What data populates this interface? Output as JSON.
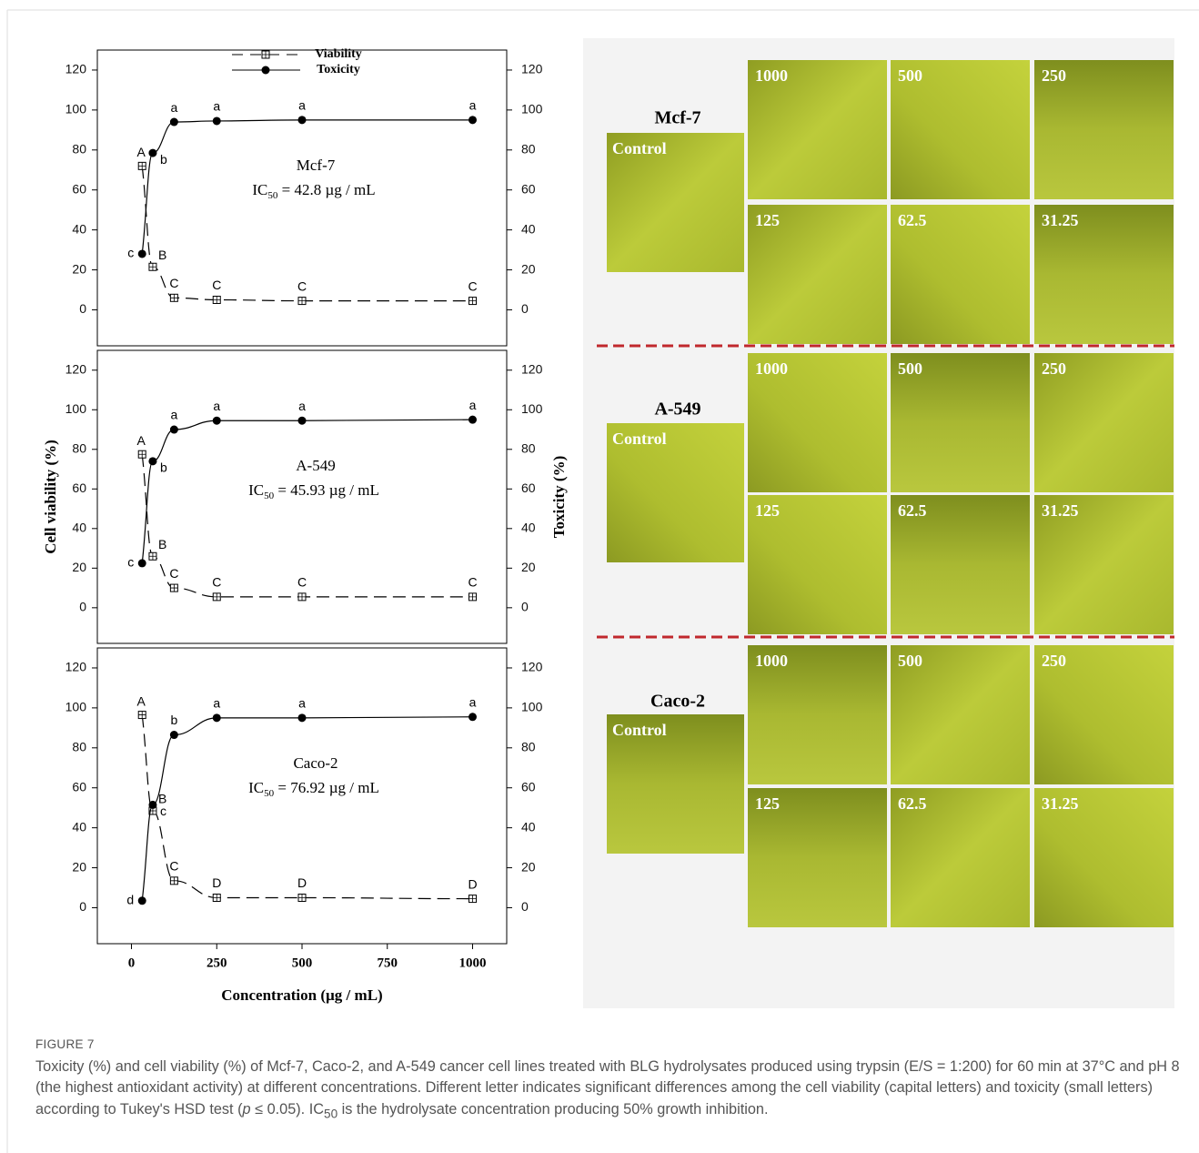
{
  "chart_data": [
    {
      "type": "line",
      "annotation": "Mcf-7",
      "ic50": [
        "IC",
        "50",
        " = 42.8 µg / mL"
      ],
      "x": [
        31.25,
        62.5,
        125,
        250,
        500,
        1000
      ],
      "xlim": [
        -100,
        1100
      ],
      "ylim": [
        -18,
        130
      ],
      "yticks": [
        0,
        20,
        40,
        60,
        80,
        100,
        120
      ],
      "y2lim": [
        -18,
        130
      ],
      "y2ticks": [
        0,
        20,
        40,
        60,
        80,
        100,
        120
      ],
      "legend": "top",
      "series": [
        {
          "name": "Viability",
          "color": "#000000",
          "style": "dashed",
          "marker": "square",
          "values": [
            72,
            21.5,
            6,
            5,
            4.5,
            4.5
          ],
          "point_labels": [
            "A",
            "B",
            "C",
            "C",
            "C",
            "C"
          ]
        },
        {
          "name": "Toxicity",
          "color": "#000000",
          "style": "solid",
          "marker": "circle",
          "axis": "y2",
          "values": [
            28,
            78.5,
            94,
            94.5,
            95,
            95
          ],
          "point_labels": [
            "c",
            "b",
            "a",
            "a",
            "a",
            "a"
          ]
        }
      ]
    },
    {
      "type": "line",
      "annotation": "A-549",
      "ic50": [
        "IC",
        "50",
        " = 45.93 µg / mL"
      ],
      "x": [
        31.25,
        62.5,
        125,
        250,
        500,
        1000
      ],
      "xlim": [
        -100,
        1100
      ],
      "ylim": [
        -18,
        130
      ],
      "yticks": [
        0,
        20,
        40,
        60,
        80,
        100,
        120
      ],
      "y2lim": [
        -18,
        130
      ],
      "y2ticks": [
        0,
        20,
        40,
        60,
        80,
        100,
        120
      ],
      "ylabel": "Cell viability (%)",
      "y2label": "Toxicity (%)",
      "series": [
        {
          "color": "#000000",
          "style": "dashed",
          "marker": "square",
          "values": [
            77.5,
            26,
            10,
            5.5,
            5.5,
            5.5
          ],
          "point_labels": [
            "A",
            "B",
            "C",
            "C",
            "C",
            "C"
          ]
        },
        {
          "color": "#000000",
          "style": "solid",
          "marker": "circle",
          "axis": "y2",
          "values": [
            22.5,
            74,
            90,
            94.5,
            94.5,
            95
          ],
          "point_labels": [
            "c",
            "b",
            "a",
            "a",
            "a",
            "a"
          ]
        }
      ]
    },
    {
      "type": "line",
      "annotation": "Caco-2",
      "ic50": [
        "IC",
        "50",
        " = 76.92 µg / mL"
      ],
      "x": [
        31.25,
        62.5,
        125,
        250,
        500,
        1000
      ],
      "xlim": [
        -100,
        1100
      ],
      "xticks": [
        0,
        250,
        500,
        750,
        1000
      ],
      "xlabel": "Concentration (µg / mL)",
      "ylim": [
        -18,
        130
      ],
      "yticks": [
        0,
        20,
        40,
        60,
        80,
        100,
        120
      ],
      "y2lim": [
        -18,
        130
      ],
      "y2ticks": [
        0,
        20,
        40,
        60,
        80,
        100,
        120
      ],
      "series": [
        {
          "color": "#000000",
          "style": "dashed",
          "marker": "square",
          "values": [
            96.5,
            48.5,
            13.5,
            5,
            5,
            4.5
          ],
          "point_labels": [
            "A",
            "B",
            "C",
            "D",
            "D",
            "D"
          ]
        },
        {
          "color": "#000000",
          "style": "solid",
          "marker": "circle",
          "axis": "y2",
          "values": [
            3.5,
            51.5,
            86.5,
            95,
            95,
            95.5
          ],
          "point_labels": [
            "d",
            "c",
            "b",
            "a",
            "a",
            "a"
          ]
        }
      ]
    }
  ],
  "micrographs": [
    {
      "cell_line": "Mcf-7",
      "control": "Control",
      "concentrations": [
        "1000",
        "500",
        "250",
        "125",
        "62.5",
        "31.25"
      ]
    },
    {
      "cell_line": "A-549",
      "control": "Control",
      "concentrations": [
        "1000",
        "500",
        "250",
        "125",
        "62.5",
        "31.25"
      ]
    },
    {
      "cell_line": "Caco-2",
      "control": "Control",
      "concentrations": [
        "1000",
        "500",
        "250",
        "125",
        "62.5",
        "31.25"
      ]
    }
  ],
  "caption": {
    "label": "FIGURE 7",
    "text": [
      "Toxicity (%) and cell viability (%) of Mcf-7, Caco-2, and A-549 cancer cell lines treated with BLG hydrolysates produced using trypsin (E/S = 1:200) for 60 min at 37°C and pH 8 (the highest antioxidant activity) at different concentrations. Different letter indicates significant differences among the cell viability (capital letters) and toxicity (small letters) according to Tukey's HSD test (",
      "p",
      " ≤ 0.05). IC",
      "50",
      " is the hydrolysate concentration producing 50% growth inhibition."
    ]
  }
}
